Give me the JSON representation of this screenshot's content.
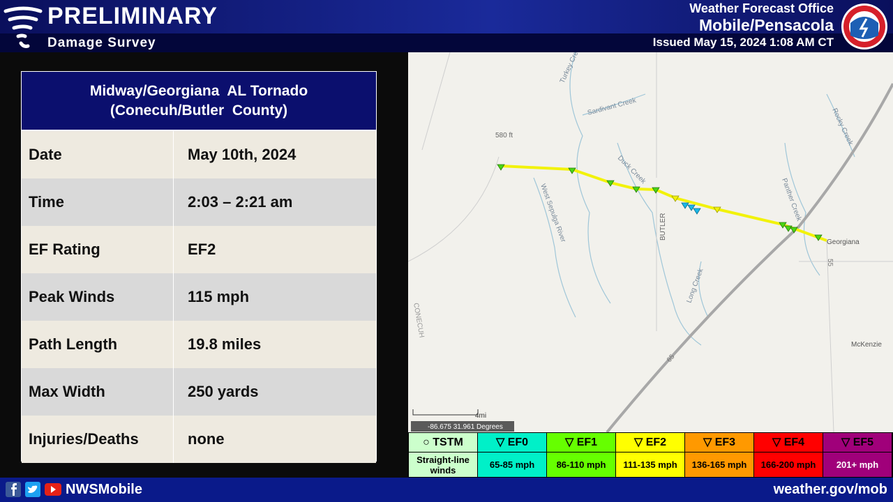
{
  "header": {
    "title": "PRELIMINARY",
    "subtitle": "Damage Survey",
    "office": "Weather Forecast Office",
    "location": "Mobile/Pensacola",
    "issued": "Issued May 15, 2024 1:08 AM CT"
  },
  "table": {
    "title": [
      "Midway/Georgiana  AL Tornado",
      "(Conecuh/Butler  County)"
    ],
    "rows": [
      [
        "Date",
        "May 10th, 2024"
      ],
      [
        "Time",
        "2:03 – 2:21 am"
      ],
      [
        "EF Rating",
        "EF2"
      ],
      [
        "Peak Winds",
        "115 mph"
      ],
      [
        "Path Length",
        "19.8 miles"
      ],
      [
        "Max Width",
        "250 yards"
      ],
      [
        "Injuries/Deaths",
        "none"
      ]
    ]
  },
  "map": {
    "labels": [
      "Turkey Creek",
      "Sardivant Creek",
      "580 ft",
      "Duck Creek",
      "West Sepulga River",
      "BUTLER",
      "Long Creek",
      "Panther Creek",
      "Rocky Creek",
      "Georgiana",
      "McKenzie",
      "65",
      "55",
      "CONECUH"
    ],
    "scale": "4mi",
    "coordinates": "-86.675 31.961 Degrees"
  },
  "legend": [
    {
      "name": "○ TSTM",
      "range": "Straight-line winds"
    },
    {
      "name": "▽ EF0",
      "range": "65-85 mph"
    },
    {
      "name": "▽ EF1",
      "range": "86-110 mph"
    },
    {
      "name": "▽ EF2",
      "range": "111-135 mph"
    },
    {
      "name": "▽ EF3",
      "range": "136-165 mph"
    },
    {
      "name": "▽ EF4",
      "range": "166-200 mph"
    },
    {
      "name": "▽ EF5",
      "range": "201+ mph"
    }
  ],
  "footer": {
    "handle": "NWSMobile",
    "url": "weather.gov/mob"
  }
}
